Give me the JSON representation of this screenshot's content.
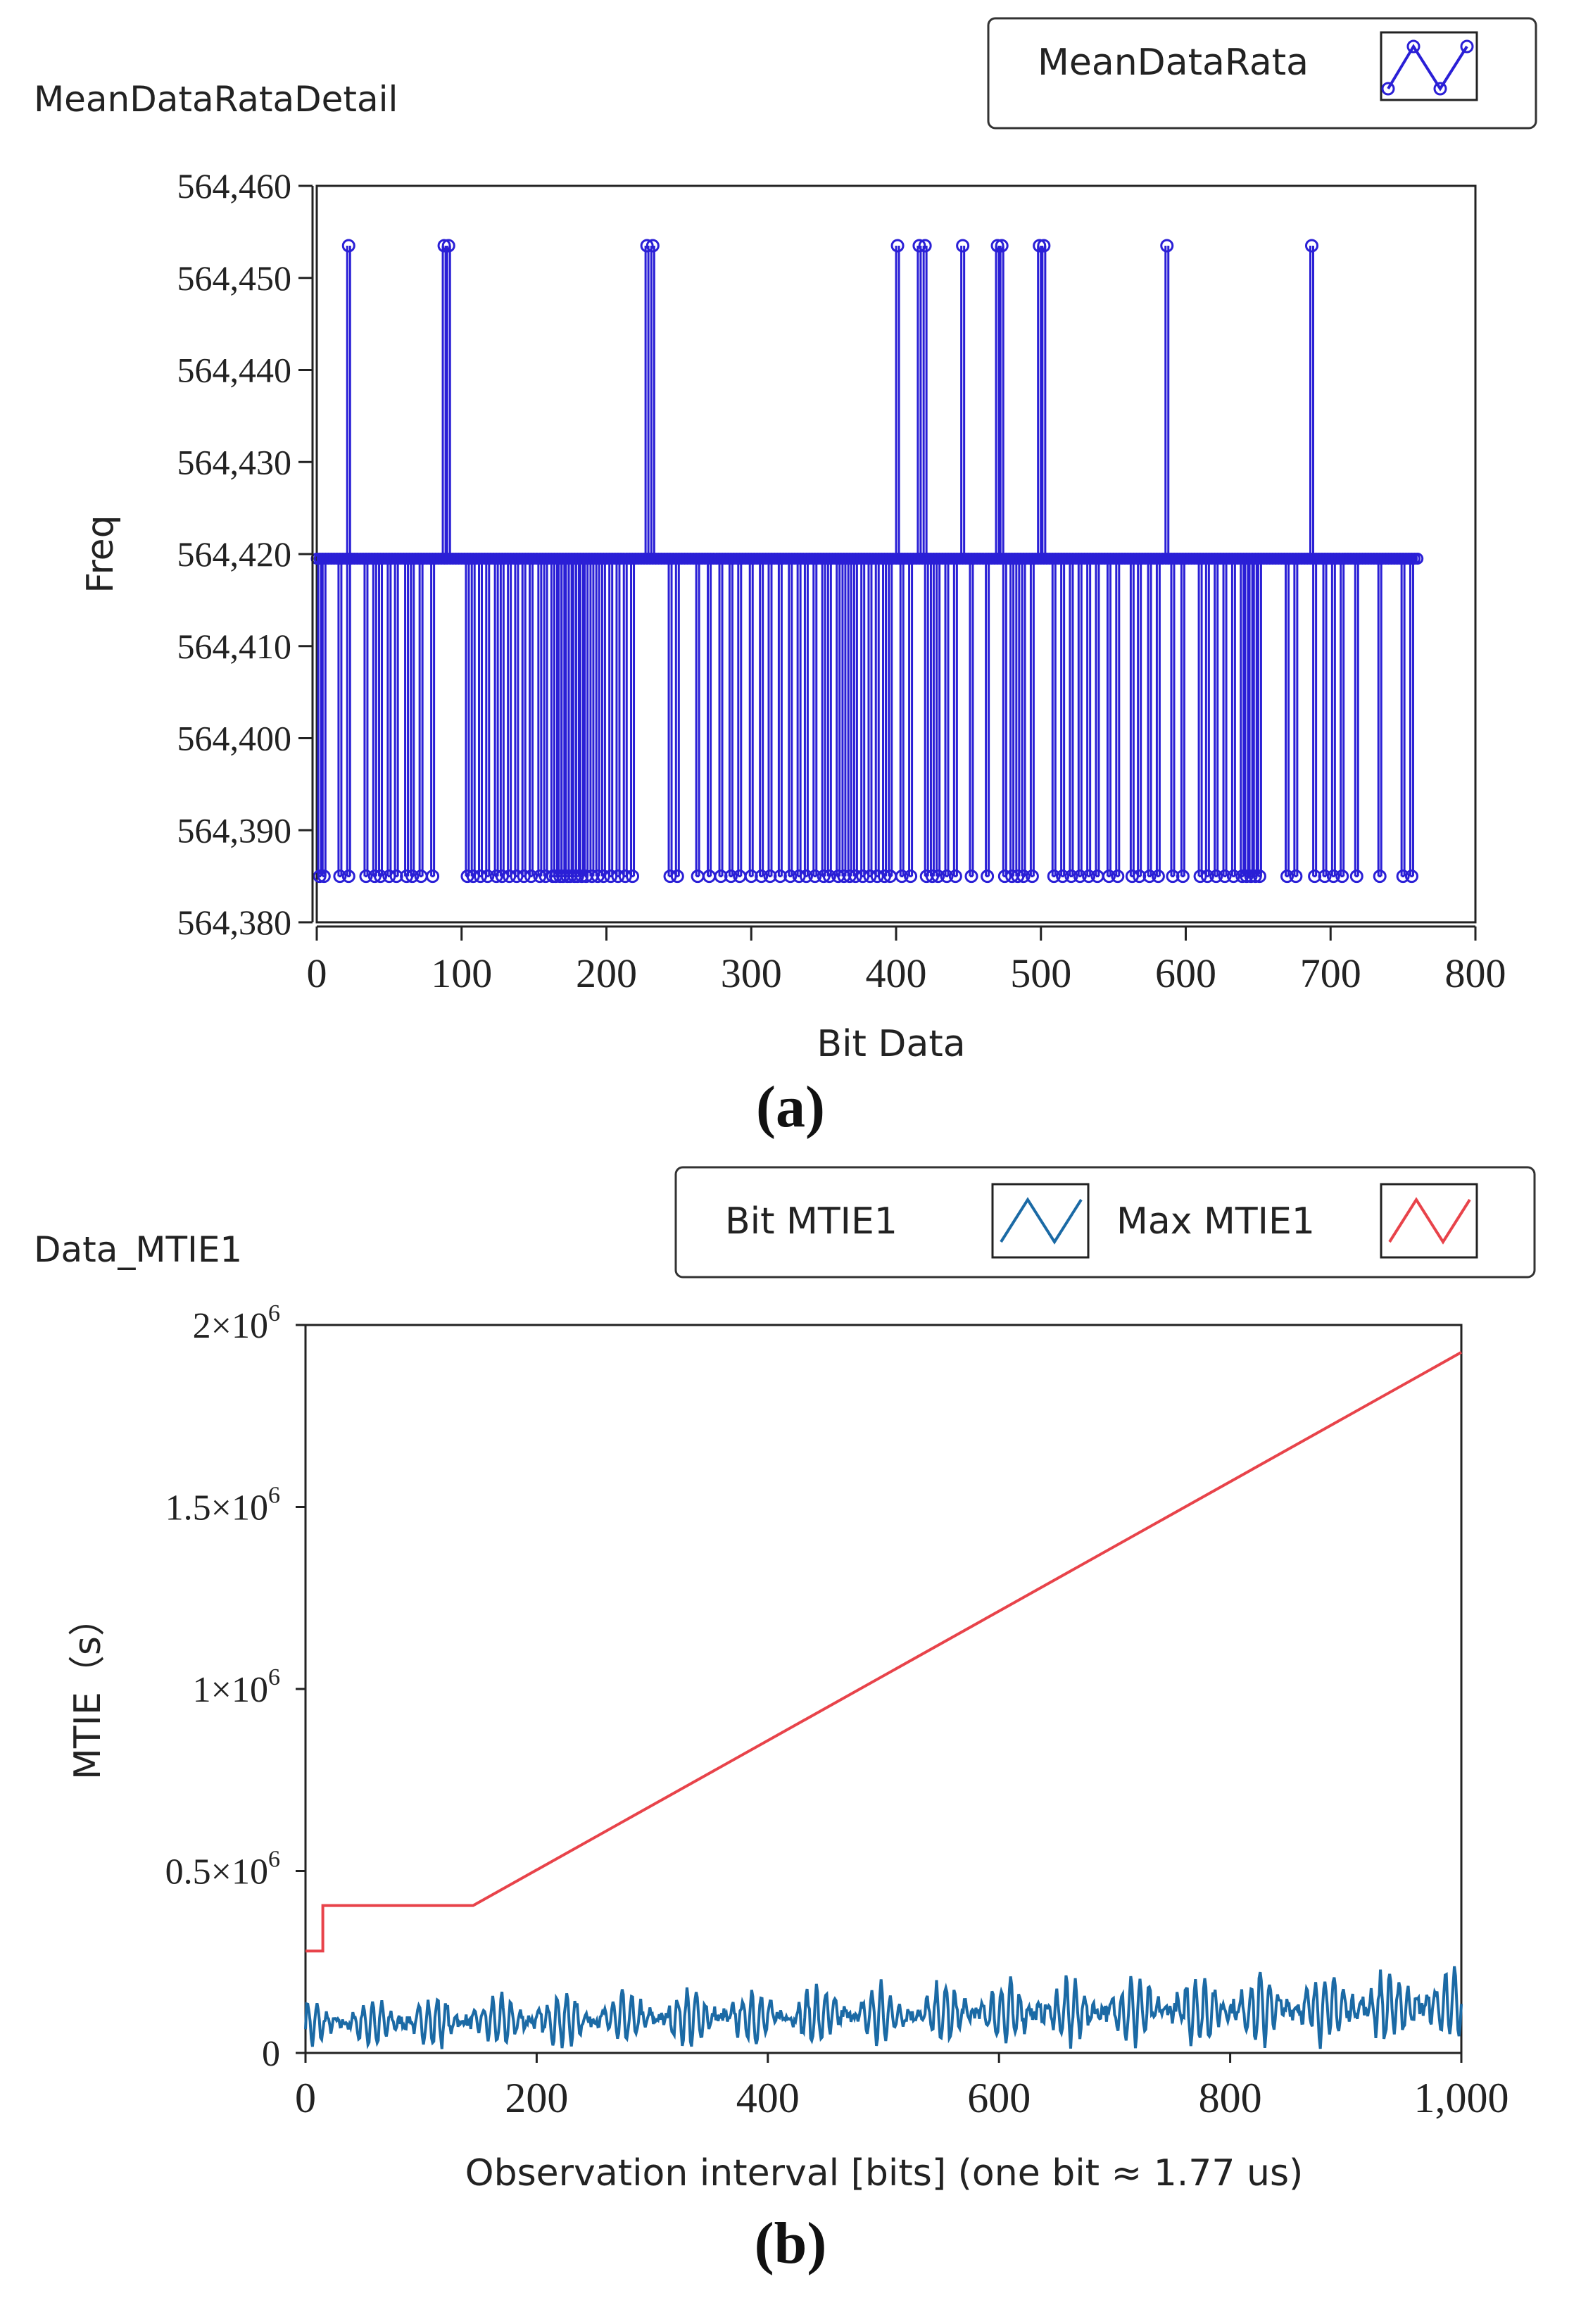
{
  "panels": [
    {
      "caption": "(a)",
      "chart_data": {
        "type": "line",
        "title": "MeanDataRataDetail",
        "xlabel": "Bit Data",
        "ylabel": "Freq",
        "xlim": [
          0,
          800
        ],
        "ylim": [
          564380,
          564460
        ],
        "x_ticks": [
          0,
          100,
          200,
          300,
          400,
          500,
          600,
          700,
          800
        ],
        "x_tick_labels": [
          "0",
          "100",
          "200",
          "300",
          "400",
          "500",
          "600",
          "700",
          "800"
        ],
        "y_ticks": [
          564380,
          564390,
          564400,
          564410,
          564420,
          564430,
          564440,
          564450,
          564460
        ],
        "y_tick_labels": [
          "564,380",
          "564,390",
          "564,400",
          "564,410",
          "564,420",
          "564,430",
          "564,440",
          "564,450",
          "564,460"
        ],
        "grid": false,
        "legend_position": "top-right",
        "levels": {
          "high": 564453.5,
          "base": 564419.5,
          "low": 564385
        },
        "x_range_of_points": [
          0,
          760
        ],
        "series": [
          {
            "name": "MeanDataRata",
            "color": "#2a1fd6",
            "marker": "circle",
            "spikes_high_x": [
              22,
              88,
              91,
              228,
              232,
              401,
              416,
              420,
              446,
              470,
              473,
              499,
              502,
              587,
              687
            ],
            "dips_low_x": [
              2,
              5,
              16,
              22,
              34,
              40,
              44,
              50,
              55,
              62,
              66,
              72,
              80,
              104,
              108,
              113,
              118,
              124,
              128,
              133,
              138,
              143,
              148,
              154,
              158,
              163,
              165,
              168,
              170,
              173,
              175,
              178,
              180,
              183,
              186,
              190,
              194,
              198,
              203,
              208,
              213,
              218,
              244,
              249,
              263,
              271,
              279,
              286,
              292,
              300,
              307,
              313,
              320,
              327,
              333,
              338,
              344,
              350,
              354,
              360,
              364,
              368,
              372,
              377,
              382,
              387,
              392,
              396,
              404,
              410,
              421,
              425,
              429,
              435,
              441,
              452,
              463,
              475,
              480,
              484,
              488,
              494,
              509,
              515,
              521,
              527,
              533,
              539,
              547,
              553,
              563,
              568,
              575,
              581,
              591,
              598,
              610,
              615,
              621,
              627,
              633,
              639,
              642,
              645,
              648,
              651,
              670,
              676,
              689,
              696,
              702,
              708,
              718,
              734,
              750,
              756
            ]
          }
        ]
      }
    },
    {
      "caption": "(b)",
      "chart_data": {
        "type": "line",
        "title": "Data_MTIE1",
        "xlabel": "Observation interval [bits] (one bit ≈ 1.77 us)",
        "ylabel": "MTIE（s）",
        "xlim": [
          0,
          1000
        ],
        "ylim": [
          0,
          2000000
        ],
        "x_ticks": [
          0,
          200,
          400,
          600,
          800,
          1000
        ],
        "x_tick_labels": [
          "0",
          "200",
          "400",
          "600",
          "800",
          "1,000"
        ],
        "y_ticks": [
          0,
          500000,
          1000000,
          1500000,
          2000000
        ],
        "y_tick_labels": [
          "0",
          "0.5×10^6",
          "1×10^6",
          "1.5×10^6",
          "2×10^6"
        ],
        "y_tick_labels_rich": [
          {
            "base": "0",
            "exp": ""
          },
          {
            "base": "0.5×10",
            "exp": "6"
          },
          {
            "base": "1×10",
            "exp": "6"
          },
          {
            "base": "1.5×10",
            "exp": "6"
          },
          {
            "base": "2×10",
            "exp": "6"
          }
        ],
        "grid": false,
        "legend_position": "top-right",
        "series": [
          {
            "name": "Bit MTIE1",
            "color": "#1b6aa5",
            "style": "oscillating",
            "baseline_trend": [
              [
                0,
                80000
              ],
              [
                1000,
                130000
              ]
            ],
            "amplitude_trend": [
              [
                0,
                60000
              ],
              [
                1000,
                100000
              ]
            ],
            "period_bits": 8
          },
          {
            "name": "Max MTIE1",
            "color": "#e8434a",
            "points": [
              [
                0,
                280000
              ],
              [
                15,
                280000
              ],
              [
                15,
                405000
              ],
              [
                145,
                405000
              ],
              [
                1000,
                1925000
              ]
            ]
          }
        ]
      }
    }
  ]
}
